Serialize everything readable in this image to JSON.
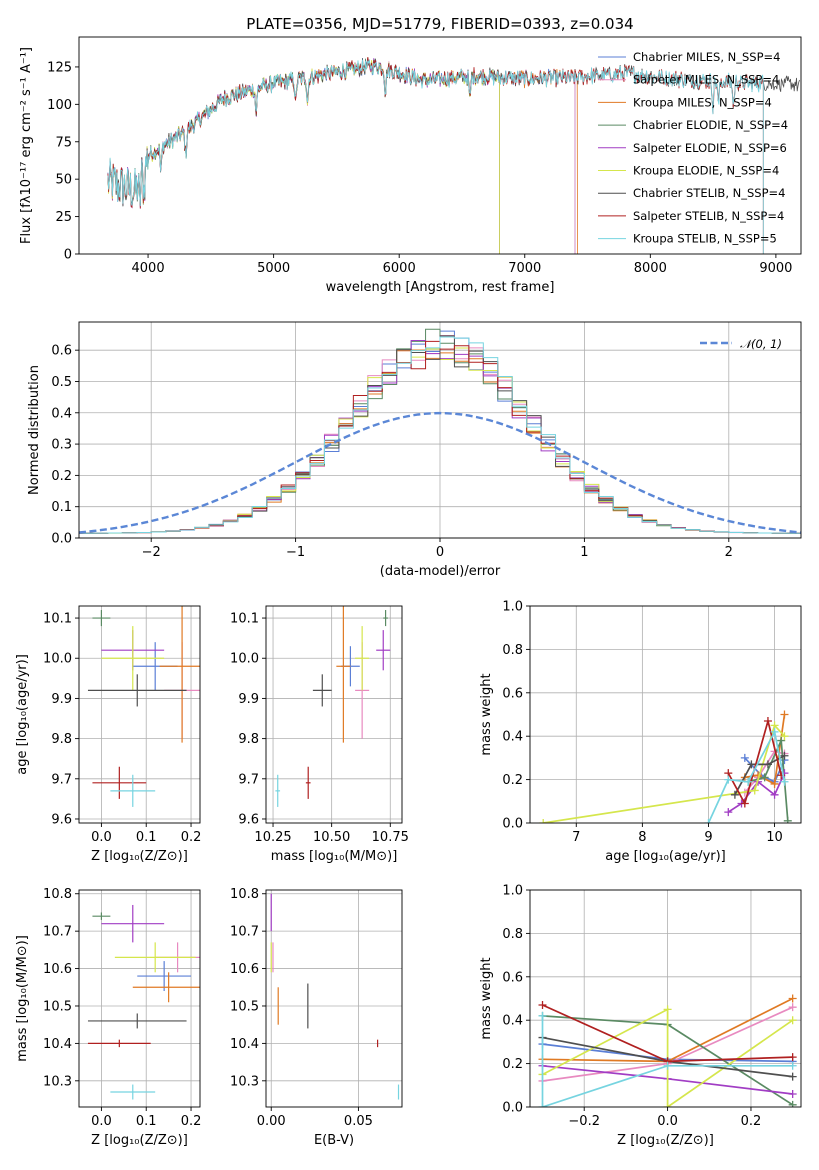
{
  "chart_data": [
    {
      "id": "spectrum",
      "type": "line",
      "title": "PLATE=0356, MJD=51779, FIBERID=0393, z=0.034",
      "xlabel": "wavelength [Angstrom, rest frame]",
      "ylabel": "Flux [fλ10⁻¹⁷ erg cm⁻² s⁻¹ A⁻¹]",
      "xlim": [
        3450,
        9200
      ],
      "ylim": [
        0,
        145
      ],
      "xticks": [
        4000,
        5000,
        6000,
        7000,
        8000,
        9000
      ],
      "yticks": [
        0,
        25,
        50,
        75,
        100,
        125
      ],
      "grid": false,
      "legend_position": "top-right",
      "data_range": [
        3680,
        9190
      ],
      "continuum": [
        [
          3680,
          48
        ],
        [
          3900,
          42
        ],
        [
          4000,
          66
        ],
        [
          4300,
          82
        ],
        [
          4600,
          104
        ],
        [
          5000,
          114
        ],
        [
          5400,
          120
        ],
        [
          5800,
          126
        ],
        [
          6200,
          116
        ],
        [
          6600,
          119
        ],
        [
          7000,
          117
        ],
        [
          7400,
          118
        ],
        [
          7800,
          121
        ],
        [
          8200,
          117
        ],
        [
          8600,
          115
        ],
        [
          9190,
          113
        ]
      ],
      "series": [
        {
          "name": "Chabrier MILES, N_SSP=4",
          "color": "#5b7fd6",
          "end": 7400
        },
        {
          "name": "Salpeter MILES, N_SSP=4",
          "color": "#e88ac0",
          "end": 7400
        },
        {
          "name": "Kroupa MILES, N_SSP=4",
          "color": "#e07a24",
          "end": 7420
        },
        {
          "name": "Chabrier ELODIE, N_SSP=4",
          "color": "#5a8a63",
          "end": 6800
        },
        {
          "name": "Salpeter ELODIE, N_SSP=6",
          "color": "#a13dc4",
          "end": 6800
        },
        {
          "name": "Kroupa ELODIE, N_SSP=4",
          "color": "#d5e64c",
          "end": 6800
        },
        {
          "name": "Chabrier STELIB, N_SSP=4",
          "color": "#4f4f4f",
          "end": 9190
        },
        {
          "name": "Salpeter STELIB, N_SSP=4",
          "color": "#b02020",
          "end": 8900
        },
        {
          "name": "Kroupa STELIB, N_SSP=5",
          "color": "#76d4e0",
          "end": 8900
        }
      ]
    },
    {
      "id": "residuals",
      "type": "histogram",
      "xlabel": "(data-model)/error",
      "ylabel": "Normed distribution",
      "xlim": [
        -2.5,
        2.5
      ],
      "ylim": [
        0,
        0.69
      ],
      "xticks": [
        -2,
        -1,
        0,
        1,
        2
      ],
      "yticks": [
        0.0,
        0.1,
        0.2,
        0.3,
        0.4,
        0.5,
        0.6
      ],
      "grid": true,
      "legend_position": "top-right",
      "reference_label": "𝒩(0, 1)",
      "reference_color": "#5b87d6",
      "bin_width": 0.1,
      "histogram_peak": 0.6
    },
    {
      "id": "age_vs_Z",
      "type": "scatter",
      "xlabel": "Z [log₁₀(Z/Z⊙)]",
      "ylabel": "age  [log₁₀(age/yr)]",
      "xlim": [
        -0.05,
        0.22
      ],
      "ylim": [
        9.59,
        10.13
      ],
      "xticks": [
        0.0,
        0.1,
        0.2
      ],
      "yticks": [
        9.6,
        9.7,
        9.8,
        9.9,
        10.0,
        10.1
      ],
      "points": [
        {
          "c": "#5b7fd6",
          "x": 0.12,
          "y": 9.98,
          "xe": 0.05,
          "ye": 0.06
        },
        {
          "c": "#e88ac0",
          "x": 0.18,
          "y": 9.92,
          "xe": 0.04,
          "ye": 0.12
        },
        {
          "c": "#e07a24",
          "x": 0.18,
          "y": 9.98,
          "xe": 0.05,
          "ye": 0.19
        },
        {
          "c": "#5a8a63",
          "x": 0.0,
          "y": 10.1,
          "xe": 0.02,
          "ye": 0.02
        },
        {
          "c": "#a13dc4",
          "x": 0.07,
          "y": 10.02,
          "xe": 0.07,
          "ye": 0.05
        },
        {
          "c": "#d5e64c",
          "x": 0.07,
          "y": 10.0,
          "xe": 0.07,
          "ye": 0.08
        },
        {
          "c": "#4f4f4f",
          "x": 0.08,
          "y": 9.92,
          "xe": 0.11,
          "ye": 0.04
        },
        {
          "c": "#b02020",
          "x": 0.04,
          "y": 9.69,
          "xe": 0.06,
          "ye": 0.04
        },
        {
          "c": "#76d4e0",
          "x": 0.07,
          "y": 9.67,
          "xe": 0.05,
          "ye": 0.04
        }
      ]
    },
    {
      "id": "age_vs_mass",
      "type": "scatter",
      "xlabel": "mass [log₁₀(M/M⊙)]",
      "xlim": [
        10.22,
        10.8
      ],
      "ylim": [
        9.59,
        10.13
      ],
      "xticks": [
        10.25,
        10.5,
        10.75
      ],
      "yticks": [
        9.6,
        9.7,
        9.8,
        9.9,
        10.0,
        10.1
      ],
      "points": [
        {
          "c": "#5b7fd6",
          "x": 10.58,
          "y": 9.98,
          "xe": 0.04,
          "ye": 0.05
        },
        {
          "c": "#e88ac0",
          "x": 10.63,
          "y": 9.92,
          "xe": 0.03,
          "ye": 0.12
        },
        {
          "c": "#e07a24",
          "x": 10.55,
          "y": 9.98,
          "xe": 0.03,
          "ye": 0.19
        },
        {
          "c": "#5a8a63",
          "x": 10.73,
          "y": 10.1,
          "xe": 0.01,
          "ye": 0.02
        },
        {
          "c": "#a13dc4",
          "x": 10.72,
          "y": 10.02,
          "xe": 0.03,
          "ye": 0.05
        },
        {
          "c": "#d5e64c",
          "x": 10.63,
          "y": 10.0,
          "xe": 0.03,
          "ye": 0.08
        },
        {
          "c": "#4f4f4f",
          "x": 10.46,
          "y": 9.92,
          "xe": 0.04,
          "ye": 0.04
        },
        {
          "c": "#b02020",
          "x": 10.4,
          "y": 9.69,
          "xe": 0.01,
          "ye": 0.04
        },
        {
          "c": "#76d4e0",
          "x": 10.27,
          "y": 9.67,
          "xe": 0.01,
          "ye": 0.04
        }
      ]
    },
    {
      "id": "weight_vs_age",
      "type": "line",
      "xlabel": "age  [log₁₀(age/yr)]",
      "ylabel": "mass weight",
      "xlim": [
        6.3,
        10.4
      ],
      "ylim": [
        0,
        1.0
      ],
      "xticks": [
        7,
        8,
        9,
        10
      ],
      "yticks": [
        0.0,
        0.2,
        0.4,
        0.6,
        0.8,
        1.0
      ],
      "grid": true,
      "series": [
        {
          "c": "#5b7fd6",
          "x": [
            9.55,
            9.8,
            10.0,
            10.15
          ],
          "y": [
            0.3,
            0.22,
            0.19,
            0.29
          ]
        },
        {
          "c": "#e88ac0",
          "x": [
            9.55,
            9.75,
            10.0,
            10.15
          ],
          "y": [
            0.14,
            0.21,
            0.33,
            0.32
          ]
        },
        {
          "c": "#e07a24",
          "x": [
            9.55,
            9.75,
            10.0,
            10.15
          ],
          "y": [
            0.21,
            0.22,
            0.18,
            0.5
          ]
        },
        {
          "c": "#5a8a63",
          "x": [
            9.6,
            9.85,
            10.1,
            10.2
          ],
          "y": [
            0.19,
            0.21,
            0.38,
            0.01
          ]
        },
        {
          "c": "#a13dc4",
          "x": [
            9.3,
            9.5,
            9.75,
            10.0,
            10.15
          ],
          "y": [
            0.05,
            0.09,
            0.19,
            0.13,
            0.23
          ]
        },
        {
          "c": "#d5e64c",
          "x": [
            6.5,
            9.7,
            10.0,
            10.15
          ],
          "y": [
            0.0,
            0.15,
            0.45,
            0.4
          ]
        },
        {
          "c": "#4f4f4f",
          "x": [
            9.4,
            9.65,
            9.9,
            10.15
          ],
          "y": [
            0.13,
            0.27,
            0.27,
            0.31
          ]
        },
        {
          "c": "#b02020",
          "x": [
            9.3,
            9.55,
            9.9,
            10.1
          ],
          "y": [
            0.23,
            0.09,
            0.47,
            0.22
          ]
        },
        {
          "c": "#76d4e0",
          "x": [
            9.0,
            9.3,
            9.6,
            10.0,
            10.15
          ],
          "y": [
            0.0,
            0.2,
            0.19,
            0.42,
            0.19
          ]
        }
      ]
    },
    {
      "id": "mass_vs_Z",
      "type": "scatter",
      "xlabel": "Z [log₁₀(Z/Z⊙)]",
      "ylabel": "mass [log₁₀(M/M⊙)]",
      "xlim": [
        -0.05,
        0.22
      ],
      "ylim": [
        10.23,
        10.81
      ],
      "xticks": [
        0.0,
        0.1,
        0.2
      ],
      "yticks": [
        10.3,
        10.4,
        10.5,
        10.6,
        10.7,
        10.8
      ],
      "points": [
        {
          "c": "#5b7fd6",
          "x": 0.14,
          "y": 10.58,
          "xe": 0.06,
          "ye": 0.04
        },
        {
          "c": "#e88ac0",
          "x": 0.17,
          "y": 10.63,
          "xe": 0.05,
          "ye": 0.04
        },
        {
          "c": "#e07a24",
          "x": 0.15,
          "y": 10.55,
          "xe": 0.08,
          "ye": 0.04
        },
        {
          "c": "#5a8a63",
          "x": 0.0,
          "y": 10.74,
          "xe": 0.02,
          "ye": 0.01
        },
        {
          "c": "#a13dc4",
          "x": 0.07,
          "y": 10.72,
          "xe": 0.07,
          "ye": 0.05
        },
        {
          "c": "#d5e64c",
          "x": 0.12,
          "y": 10.63,
          "xe": 0.09,
          "ye": 0.04
        },
        {
          "c": "#4f4f4f",
          "x": 0.08,
          "y": 10.46,
          "xe": 0.11,
          "ye": 0.02
        },
        {
          "c": "#b02020",
          "x": 0.04,
          "y": 10.4,
          "xe": 0.07,
          "ye": 0.01
        },
        {
          "c": "#76d4e0",
          "x": 0.07,
          "y": 10.27,
          "xe": 0.05,
          "ye": 0.02
        }
      ]
    },
    {
      "id": "mass_vs_ebv",
      "type": "scatter",
      "xlabel": "E(B-V)",
      "xlim": [
        -0.003,
        0.075
      ],
      "ylim": [
        10.23,
        10.81
      ],
      "xticks": [
        0.0,
        0.05
      ],
      "yticks": [
        10.3,
        10.4,
        10.5,
        10.6,
        10.7,
        10.8
      ],
      "points": [
        {
          "c": "#a13dc4",
          "x": 0.0,
          "y": 10.75,
          "xe": 0,
          "ye": 0.05
        },
        {
          "c": "#d5e64c",
          "x": 0.0,
          "y": 10.63,
          "xe": 0,
          "ye": 0.04
        },
        {
          "c": "#e88ac0",
          "x": 0.001,
          "y": 10.63,
          "xe": 0,
          "ye": 0.04
        },
        {
          "c": "#e07a24",
          "x": 0.004,
          "y": 10.5,
          "xe": 0,
          "ye": 0.05
        },
        {
          "c": "#4f4f4f",
          "x": 0.021,
          "y": 10.5,
          "xe": 0,
          "ye": 0.06
        },
        {
          "c": "#b02020",
          "x": 0.061,
          "y": 10.4,
          "xe": 0,
          "ye": 0.01
        },
        {
          "c": "#76d4e0",
          "x": 0.073,
          "y": 10.27,
          "xe": 0,
          "ye": 0.02
        }
      ]
    },
    {
      "id": "weight_vs_Z",
      "type": "line",
      "xlabel": "Z [log₁₀(Z/Z⊙)]",
      "ylabel": "mass weight",
      "xlim": [
        -0.33,
        0.32
      ],
      "ylim": [
        0,
        1.0
      ],
      "xticks": [
        -0.2,
        0.0,
        0.2
      ],
      "yticks": [
        0.0,
        0.2,
        0.4,
        0.6,
        0.8,
        1.0
      ],
      "grid": true,
      "series": [
        {
          "c": "#5b7fd6",
          "x": [
            -0.3,
            0.0,
            0.3
          ],
          "y": [
            0.29,
            0.22,
            0.21
          ]
        },
        {
          "c": "#e88ac0",
          "x": [
            -0.3,
            0.0,
            0.3
          ],
          "y": [
            0.12,
            0.2,
            0.46
          ]
        },
        {
          "c": "#e07a24",
          "x": [
            -0.3,
            0.0,
            0.3
          ],
          "y": [
            0.22,
            0.21,
            0.5
          ]
        },
        {
          "c": "#5a8a63",
          "x": [
            -0.3,
            0.0,
            0.3
          ],
          "y": [
            0.42,
            0.38,
            0.01
          ]
        },
        {
          "c": "#a13dc4",
          "x": [
            -0.3,
            0.0,
            0.3
          ],
          "y": [
            0.19,
            0.13,
            0.06
          ]
        },
        {
          "c": "#d5e64c",
          "x": [
            -0.3,
            0.0,
            0.0,
            0.3
          ],
          "y": [
            0.15,
            0.45,
            0.0,
            0.4
          ]
        },
        {
          "c": "#4f4f4f",
          "x": [
            -0.3,
            0.0,
            0.3
          ],
          "y": [
            0.32,
            0.21,
            0.14
          ]
        },
        {
          "c": "#b02020",
          "x": [
            -0.3,
            0.0,
            0.3
          ],
          "y": [
            0.47,
            0.21,
            0.23
          ]
        },
        {
          "c": "#76d4e0",
          "x": [
            -0.3,
            -0.3,
            0.0,
            0.3
          ],
          "y": [
            0.42,
            0.0,
            0.19,
            0.19
          ]
        }
      ]
    }
  ]
}
